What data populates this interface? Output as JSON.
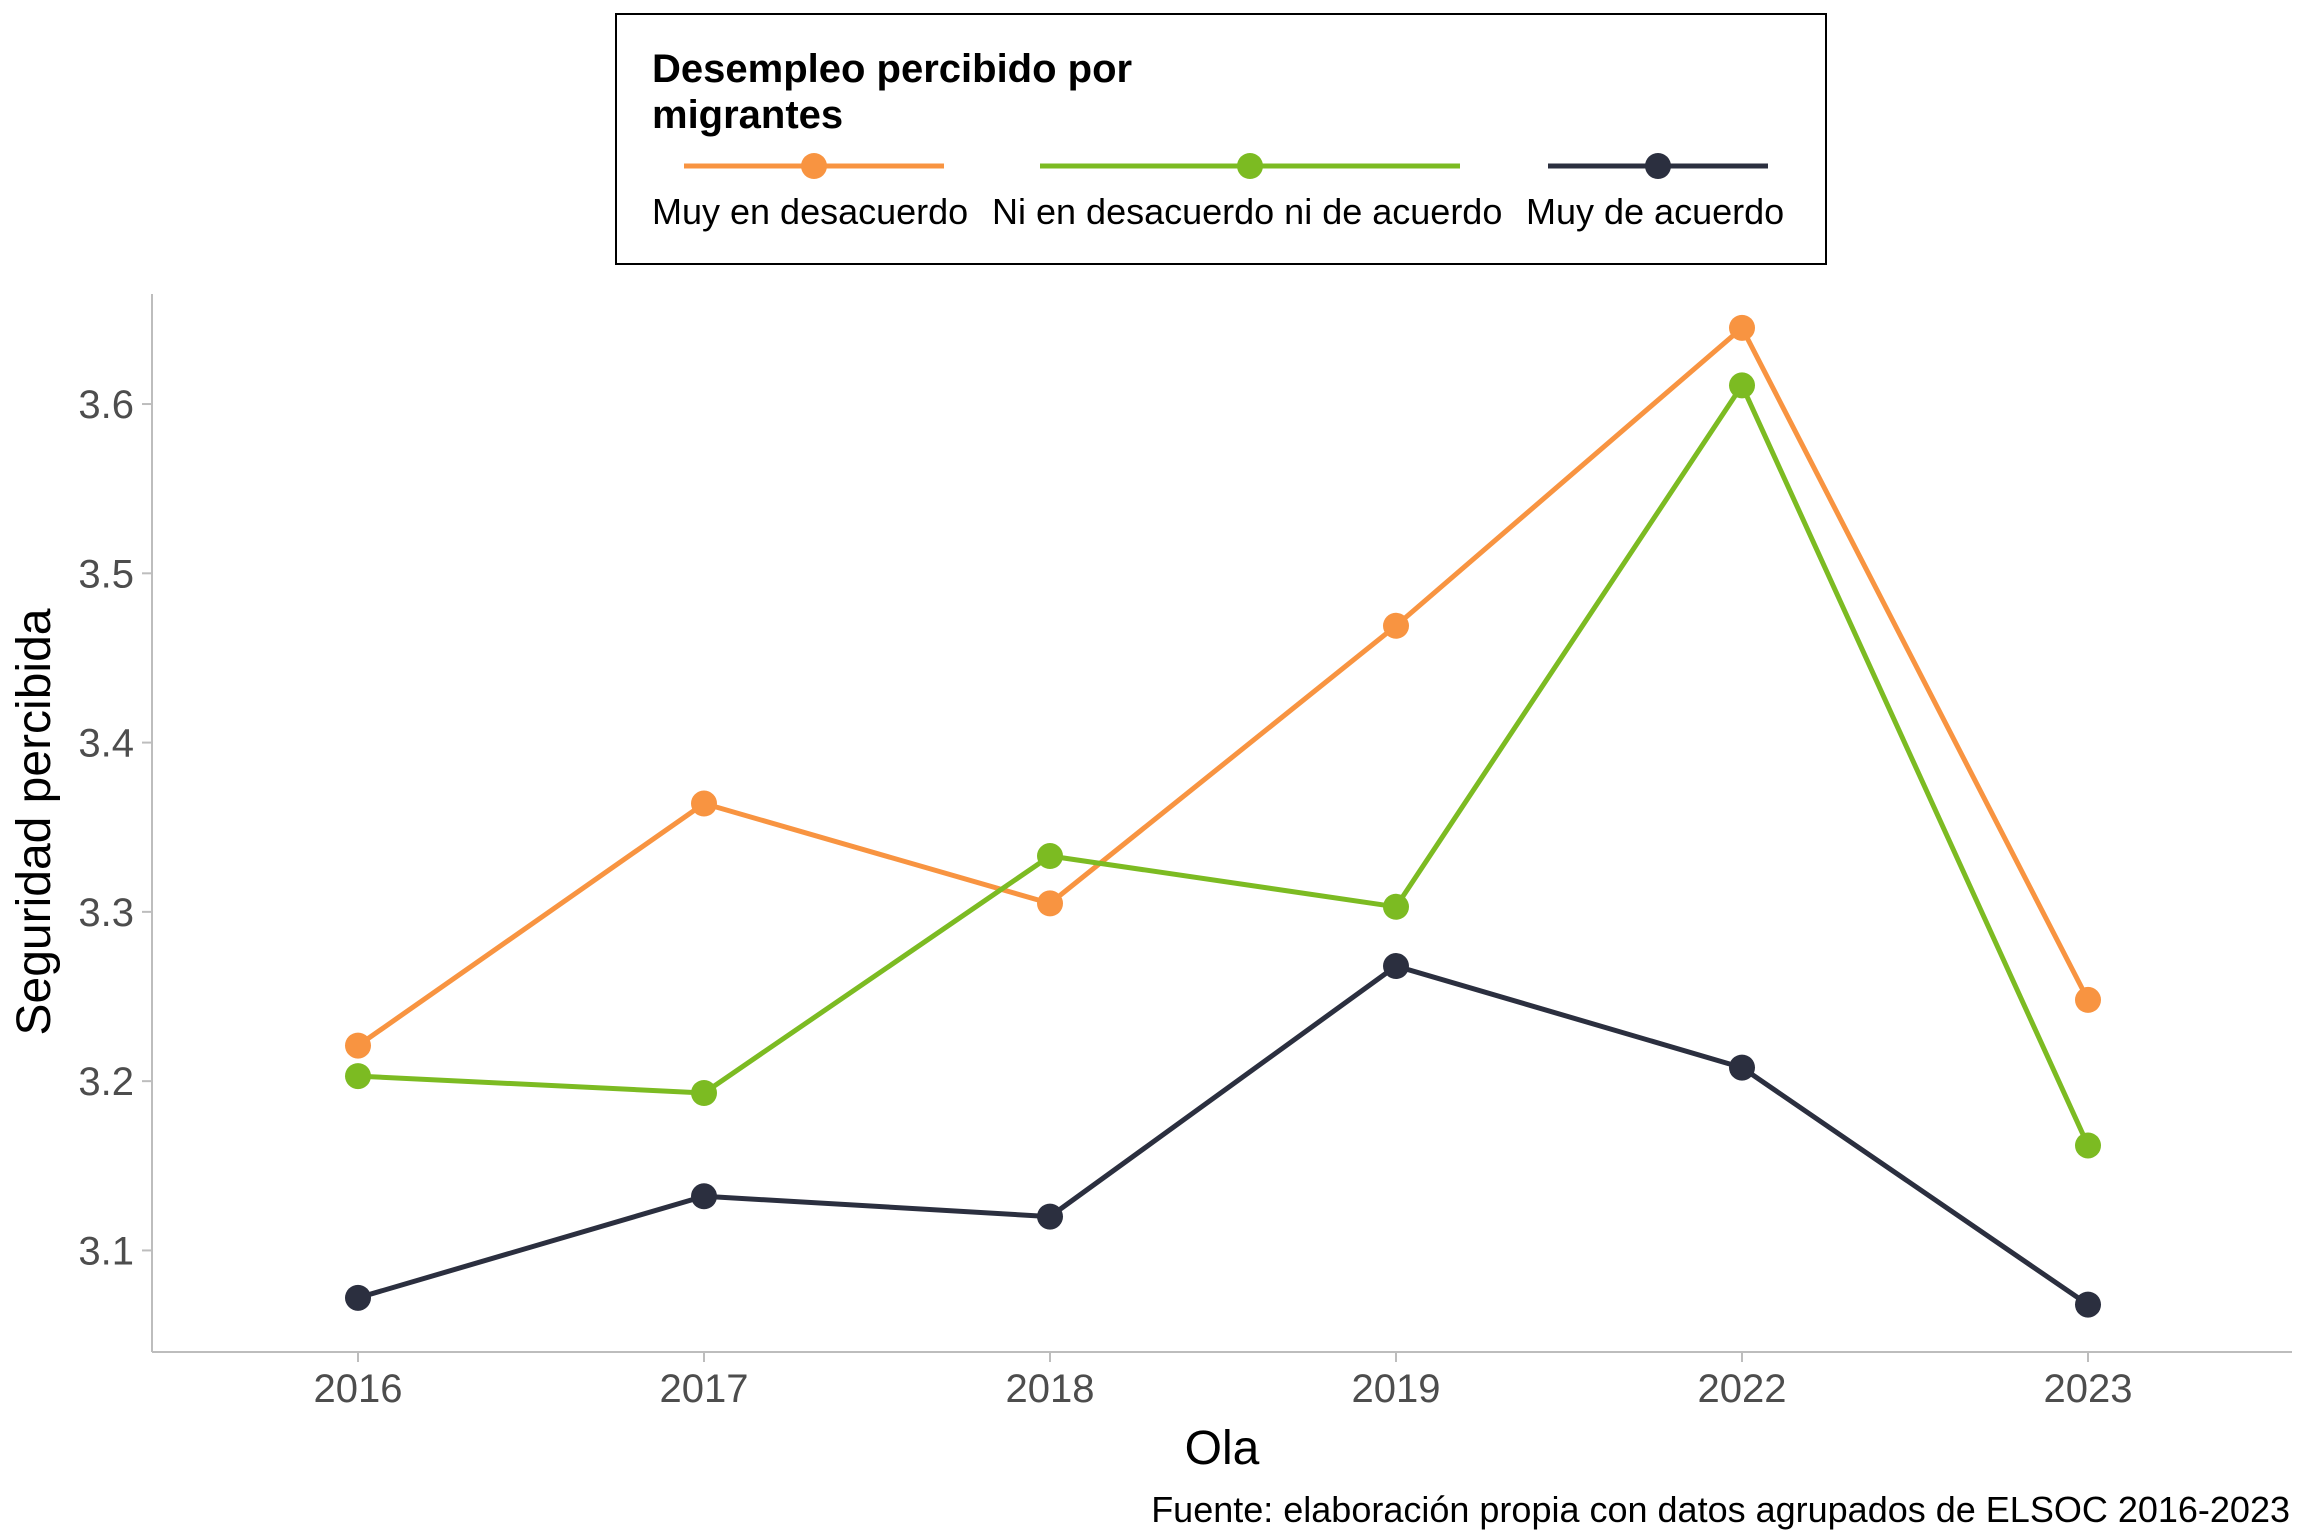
{
  "chart_data": {
    "type": "line",
    "categories": [
      "2016",
      "2017",
      "2018",
      "2019",
      "2022",
      "2023"
    ],
    "series": [
      {
        "name": "Muy en desacuerdo",
        "color": "#F89441",
        "values": [
          3.221,
          3.364,
          3.305,
          3.469,
          3.645,
          3.248
        ]
      },
      {
        "name": "Ni en desacuerdo ni de acuerdo",
        "color": "#7CBB22",
        "values": [
          3.203,
          3.193,
          3.333,
          3.303,
          3.611,
          3.162
        ]
      },
      {
        "name": "Muy de acuerdo",
        "color": "#2B2F3F",
        "values": [
          3.072,
          3.132,
          3.12,
          3.268,
          3.208,
          3.068
        ]
      }
    ],
    "xlabel": "Ola",
    "ylabel": "Seguridad percibida",
    "ylim": [
      3.04,
      3.665
    ],
    "yticks": [
      "3.1",
      "3.2",
      "3.3",
      "3.4",
      "3.5",
      "3.6"
    ],
    "legend": {
      "title_line1": "Desempleo percibido por",
      "title_line2": "migrantes",
      "position": "top"
    },
    "caption": "Fuente: elaboración propia con datos agrupados de ELSOC 2016-2023",
    "grid": false
  }
}
